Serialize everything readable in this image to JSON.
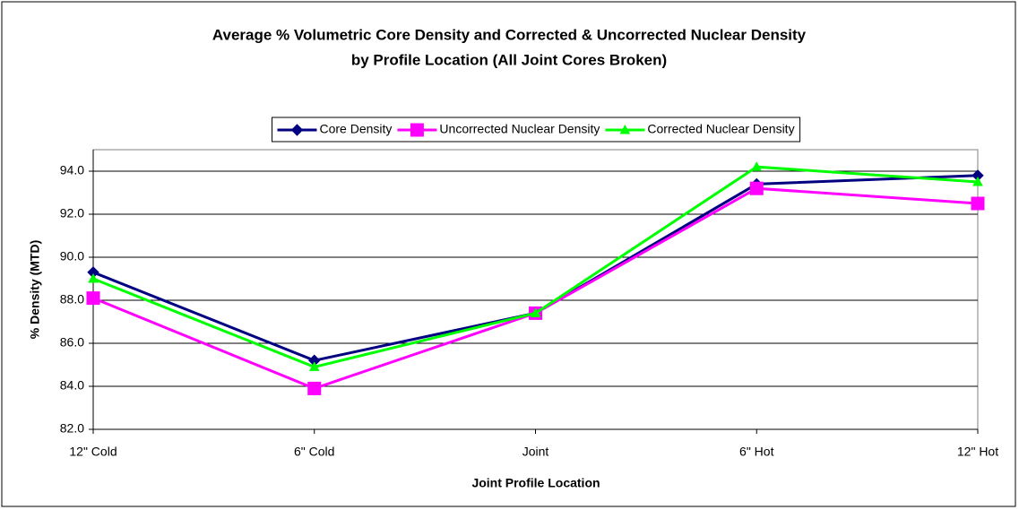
{
  "chart_data": {
    "type": "line",
    "title": [
      "Average % Volumetric Core Density and Corrected & Uncorrected Nuclear Density",
      "by Profile Location (All Joint Cores Broken)"
    ],
    "x_label": "Joint Profile Location",
    "y_label": "% Density (MTD)",
    "categories": [
      "12\" Cold",
      "6\" Cold",
      "Joint",
      "6\" Hot",
      "12\" Hot"
    ],
    "series": [
      {
        "name": "Core Density",
        "color": "#000080",
        "marker": "diamond",
        "values": [
          89.3,
          85.2,
          87.4,
          93.4,
          93.8
        ]
      },
      {
        "name": "Uncorrected Nuclear Density",
        "color": "#ff00ff",
        "marker": "square",
        "values": [
          88.1,
          83.9,
          87.4,
          93.2,
          92.5
        ]
      },
      {
        "name": "Corrected Nuclear Density",
        "color": "#00ff00",
        "marker": "triangle",
        "values": [
          89.0,
          84.9,
          87.4,
          94.2,
          93.5
        ]
      }
    ],
    "ylim": [
      82,
      95
    ],
    "yticks": [
      {
        "value": 82,
        "label": "82.0"
      },
      {
        "value": 84,
        "label": "84.0"
      },
      {
        "value": 86,
        "label": "86.0"
      },
      {
        "value": 88,
        "label": "88.0"
      },
      {
        "value": 90,
        "label": "90.0"
      },
      {
        "value": 92,
        "label": "92.0"
      },
      {
        "value": 94,
        "label": "94.0"
      }
    ],
    "grid": true,
    "legend": "top"
  }
}
